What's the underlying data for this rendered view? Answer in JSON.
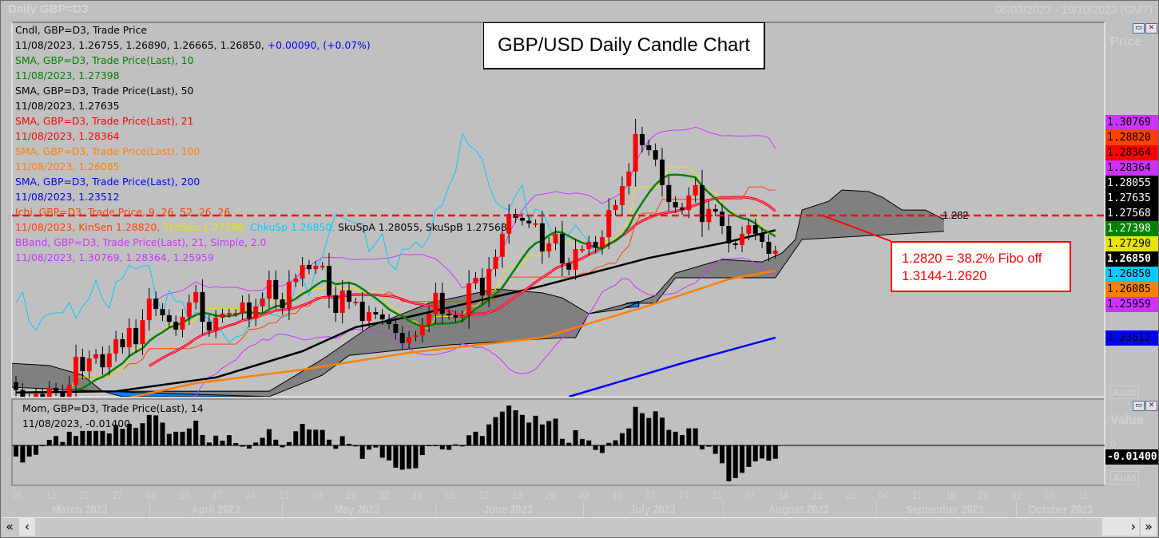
{
  "window": {
    "title": "Daily GBP=D3",
    "date_range": "06/03/2023 - 19/10/2023 (GMT)"
  },
  "chart_title": "GBP/USD Daily Candle Chart",
  "legend": {
    "candle_header": "Cndl, GBP=D3, Trade Price",
    "candle_values": "11/08/2023, 1.26755, 1.26890, 1.26665, 1.26850,",
    "candle_change": "+0.00090, (+0.07%)",
    "sma10_header": "SMA, GBP=D3, Trade Price(Last),  10",
    "sma10_value": "11/08/2023, 1.27398",
    "sma50_header": "SMA, GBP=D3, Trade Price(Last),  50",
    "sma50_value": "11/08/2023, 1.27635",
    "sma21_header": "SMA, GBP=D3, Trade Price(Last),  21",
    "sma21_value": "11/08/2023, 1.28364",
    "sma100_header": "SMA, GBP=D3, Trade Price(Last),  100",
    "sma100_value": "11/08/2023, 1.26085",
    "sma200_header": "SMA, GBP=D3, Trade Price(Last),  200",
    "sma200_value": "11/08/2023, 1.23512",
    "ichi_header": "Ichi, GBP=D3, Trade Price,  9, 26, 52, 26, 26",
    "ichi_kijun": "11/08/2023, KinSen 1.28820,",
    "ichi_tenkan": "TknSen 1.27290,",
    "ichi_chikou": "ChkuSp 1.26850,",
    "ichi_spans": "SkuSpA 1.28055, SkuSpB 1.27568",
    "bband_header": "BBand, GBP=D3, Trade Price(Last),  21, Simple, 2.0",
    "bband_value": "11/08/2023, 1.30769, 1.28364, 1.25959"
  },
  "momentum_legend": {
    "header": "Mom, GBP=D3, Trade Price(Last),  14",
    "value": "11/08/2023, -0.01400"
  },
  "annotation": {
    "level_label": "1.282",
    "line1": "1.2820 = 38.2% Fibo off",
    "line2": "1.3144-1.2620"
  },
  "price_axis": {
    "title": "Price",
    "auto": "Auto",
    "labels": [
      {
        "text": "1.30769",
        "bg": "#cc33ff",
        "fg": "#000000"
      },
      {
        "text": "1.28820",
        "bg": "#ff4000",
        "fg": "#000000"
      },
      {
        "text": "1.28364",
        "bg": "#ff0000",
        "fg": "#000000"
      },
      {
        "text": "1.28364",
        "bg": "#cc33ff",
        "fg": "#000000"
      },
      {
        "text": "1.28055",
        "bg": "#000000",
        "fg": "#ffffff"
      },
      {
        "text": "1.27635",
        "bg": "#000000",
        "fg": "#ffffff"
      },
      {
        "text": "1.27568",
        "bg": "#000000",
        "fg": "#ffffff"
      },
      {
        "text": "1.27398",
        "bg": "#008000",
        "fg": "#ffffff"
      },
      {
        "text": "1.27290",
        "bg": "#e6e600",
        "fg": "#000000"
      },
      {
        "text": "1.26850",
        "bg": "#000000",
        "fg": "#ffffff"
      },
      {
        "text": "1.26850",
        "bg": "#00ccff",
        "fg": "#000000"
      },
      {
        "text": "1.26085",
        "bg": "#ff8000",
        "fg": "#000000"
      },
      {
        "text": "1.25959",
        "bg": "#cc33ff",
        "fg": "#000000"
      },
      {
        "text": "1.23512",
        "bg": "#0000ff",
        "fg": "#000000"
      }
    ]
  },
  "momentum_axis": {
    "title": "Value",
    "zero": "0",
    "current": "-0.01400",
    "auto": "Auto"
  },
  "x_axis": {
    "days": [
      "06",
      "13",
      "20",
      "27",
      "03",
      "10",
      "17",
      "24",
      "01",
      "08",
      "15",
      "22",
      "29",
      "05",
      "12",
      "19",
      "26",
      "03",
      "10",
      "17",
      "24",
      "31",
      "07",
      "14",
      "21",
      "28",
      "04",
      "11",
      "18",
      "25",
      "02",
      "09",
      "16"
    ],
    "months": [
      "March 2023",
      "April 2023",
      "May 2023",
      "June 2023",
      "July 2023",
      "August 2023",
      "September 2023",
      "October 2023"
    ]
  },
  "scrollbar": {
    "first": "«",
    "prev": "‹",
    "next": "›",
    "last": "»"
  },
  "chart_data": {
    "type": "candlestick",
    "title": "GBP/USD Daily Candle Chart",
    "instrument": "GBP=D3",
    "x_start": "06/03/2023",
    "last_date": "11/08/2023",
    "first_open": 1.218,
    "close": [
      1.215,
      1.211,
      1.212,
      1.2135,
      1.212,
      1.2158,
      1.2145,
      1.211,
      1.217,
      1.2277,
      1.2222,
      1.2271,
      1.2287,
      1.2237,
      1.229,
      1.2345,
      1.2314,
      1.2388,
      1.2326,
      1.2418,
      1.2501,
      1.2461,
      1.2437,
      1.2412,
      1.2382,
      1.2431,
      1.2486,
      1.2526,
      1.2412,
      1.2379,
      1.2428,
      1.2443,
      1.2446,
      1.2446,
      1.2486,
      1.2424,
      1.2471,
      1.2501,
      1.2572,
      1.2498,
      1.2464,
      1.2565,
      1.2578,
      1.263,
      1.2614,
      1.2627,
      1.2627,
      1.2513,
      1.2446,
      1.2532,
      1.2489,
      1.2489,
      1.2415,
      1.2449,
      1.244,
      1.2421,
      1.2403,
      1.2369,
      1.233,
      1.2354,
      1.236,
      1.24,
      1.2443,
      1.2523,
      1.2443,
      1.2437,
      1.2428,
      1.2437,
      1.2559,
      1.2581,
      1.2513,
      1.2615,
      1.2661,
      1.275,
      1.2826,
      1.2811,
      1.28,
      1.279,
      1.279,
      1.2682,
      1.2713,
      1.275,
      1.2636,
      1.2612,
      1.2691,
      1.2691,
      1.2719,
      1.2697,
      1.2737,
      1.2841,
      1.286,
      1.2933,
      1.2989,
      1.3133,
      1.309,
      1.3071,
      1.3035,
      1.2937,
      1.2872,
      1.2851,
      1.2841,
      1.2897,
      1.2937,
      1.2795,
      1.2845,
      1.2835,
      1.278,
      1.2713,
      1.2707,
      1.275,
      1.2783,
      1.275,
      1.2719,
      1.2673,
      1.2685
    ],
    "sma50": [
      [
        0,
        1.214
      ],
      [
        15,
        1.2145
      ],
      [
        30,
        1.2198
      ],
      [
        43,
        1.2299
      ],
      [
        51,
        1.2391
      ],
      [
        59,
        1.2431
      ],
      [
        79,
        1.255
      ],
      [
        95,
        1.2657
      ],
      [
        107,
        1.2719
      ],
      [
        114,
        1.27635
      ]
    ],
    "sma100": [
      [
        16,
        1.2115
      ],
      [
        27,
        1.2176
      ],
      [
        43,
        1.2228
      ],
      [
        59,
        1.2293
      ],
      [
        79,
        1.2351
      ],
      [
        95,
        1.2474
      ],
      [
        107,
        1.2575
      ],
      [
        114,
        1.26085
      ]
    ],
    "sma200": [
      [
        83,
        1.2124
      ],
      [
        100,
        1.2253
      ],
      [
        114,
        1.23512
      ]
    ],
    "cloud_upper": [
      [
        -1,
        1.2253
      ],
      [
        5,
        1.2244
      ],
      [
        10,
        1.2207
      ],
      [
        13,
        1.2145
      ],
      [
        38,
        1.2145
      ],
      [
        41,
        1.2191
      ],
      [
        46,
        1.2268
      ],
      [
        53,
        1.2391
      ],
      [
        62,
        1.2483
      ],
      [
        72,
        1.2538
      ],
      [
        79,
        1.2523
      ],
      [
        82,
        1.2504
      ],
      [
        86,
        1.2443
      ],
      [
        91,
        1.2461
      ],
      [
        96,
        1.2513
      ],
      [
        99,
        1.2599
      ],
      [
        106,
        1.2651
      ],
      [
        112,
        1.2642
      ],
      [
        115,
        1.2676
      ],
      [
        117,
        1.2728
      ],
      [
        118,
        1.2841
      ],
      [
        122,
        1.2875
      ],
      [
        124,
        1.2918
      ],
      [
        128,
        1.2912
      ],
      [
        130,
        1.2891
      ],
      [
        133,
        1.2841
      ],
      [
        136.5,
        1.2841
      ],
      [
        139.3,
        1.2805
      ]
    ],
    "cloud_lower": [
      [
        -1,
        1.2161
      ],
      [
        13,
        1.2145
      ],
      [
        38,
        1.2124
      ],
      [
        46,
        1.2207
      ],
      [
        50,
        1.2283
      ],
      [
        65,
        1.2323
      ],
      [
        82,
        1.2351
      ],
      [
        84,
        1.2351
      ],
      [
        86,
        1.2443
      ],
      [
        92,
        1.2483
      ],
      [
        96,
        1.2483
      ],
      [
        99,
        1.2581
      ],
      [
        114,
        1.2581
      ],
      [
        118,
        1.2728
      ],
      [
        139.3,
        1.2759
      ]
    ],
    "cloud_bearish_segments": [
      [
        [
          13,
          1.2145
        ],
        [
          38,
          1.2145
        ],
        [
          38,
          1.2124
        ],
        [
          16,
          1.2124
        ]
      ],
      [
        [
          91.6,
          1.2483
        ],
        [
          93.5,
          1.249
        ],
        [
          93.5,
          1.247
        ],
        [
          91.6,
          1.2466
        ]
      ]
    ],
    "fibo_level": 1.282,
    "price_ylim": [
      1.2124,
      1.3562
    ],
    "momentum_period": 14,
    "momentum_first14": [
      -0.013,
      -0.02,
      -0.013,
      -0.011,
      0.0,
      0.0065,
      0.011,
      0.004,
      0.016,
      0.011,
      0.017,
      0.017,
      0.017,
      0.017
    ],
    "series_colors": {
      "candle_up": "#ff0000",
      "candle_down": "#000000",
      "sma10": "#008000",
      "sma21": "#ff0000",
      "sma50": "#000000",
      "sma100": "#ff8000",
      "sma200": "#0000ff",
      "kijun": "#ff4000",
      "tenkan": "#e6e600",
      "chikou": "#00ccff",
      "bband": "#cc33ff",
      "cloud_bull": "#808080",
      "cloud_bear": "#0080ff",
      "fibo": "#ff0000",
      "momentum": "#000000"
    }
  }
}
